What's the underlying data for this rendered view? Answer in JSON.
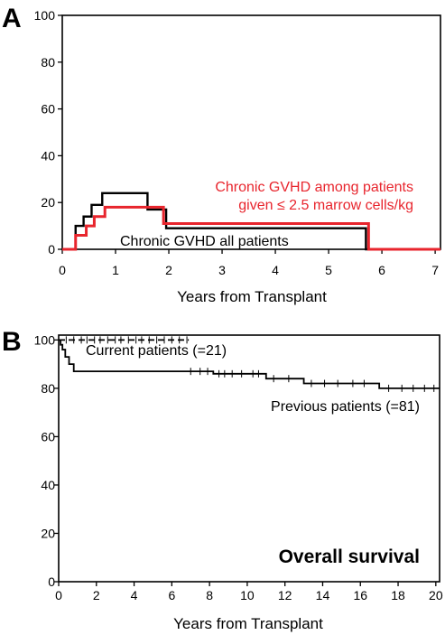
{
  "chart_data": [
    {
      "panel": "A",
      "type": "line",
      "xlabel": "Years from Transplant",
      "ylabel": "",
      "xlim": [
        0,
        7.1
      ],
      "ylim": [
        0,
        100
      ],
      "xticks": [
        0,
        1,
        2,
        3,
        4,
        5,
        6,
        7
      ],
      "yticks": [
        0,
        20,
        40,
        60,
        80,
        100
      ],
      "series": [
        {
          "name": "Chronic GVHD all patients",
          "label_lines": [
            "Chronic GVHD all patients"
          ],
          "color": "#000000",
          "dashed": false,
          "x": [
            0,
            0.25,
            0.25,
            0.4,
            0.4,
            0.55,
            0.55,
            0.75,
            0.75,
            1.6,
            1.6,
            1.95,
            1.95,
            5.7,
            5.7,
            7.1
          ],
          "y": [
            0,
            0,
            10,
            10,
            14,
            14,
            19,
            19,
            24,
            24,
            17,
            17,
            9,
            9,
            0,
            0
          ]
        },
        {
          "name": "Chronic GVHD among patients given ≤ 2.5 marrow cells/kg",
          "label_lines": [
            "Chronic GVHD among patients",
            "given ≤ 2.5 marrow cells/kg"
          ],
          "color": "#e8252d",
          "dashed": false,
          "x": [
            0,
            0.25,
            0.25,
            0.45,
            0.45,
            0.6,
            0.6,
            0.8,
            0.8,
            1.9,
            1.9,
            5.75,
            5.75,
            7.1
          ],
          "y": [
            0,
            0,
            6,
            6,
            10,
            10,
            14,
            14,
            18,
            18,
            11,
            11,
            0,
            0
          ]
        }
      ]
    },
    {
      "panel": "B",
      "type": "line",
      "title": "Overall survival",
      "xlabel": "Years from Transplant",
      "ylabel": "",
      "xlim": [
        0,
        20.2
      ],
      "ylim": [
        0,
        102
      ],
      "xticks": [
        0,
        2,
        4,
        6,
        8,
        10,
        12,
        14,
        16,
        18,
        20
      ],
      "yticks": [
        0,
        20,
        40,
        60,
        80,
        100
      ],
      "series": [
        {
          "name": "Current patients (=21)",
          "label_lines": [
            "Current patients (=21)"
          ],
          "color": "#000000",
          "dashed": true,
          "x": [
            0,
            6.9
          ],
          "y": [
            100,
            100
          ],
          "censor_x": [
            0.4,
            0.8,
            1.2,
            1.5,
            1.9,
            2.2,
            2.6,
            3.0,
            3.3,
            3.7,
            4.1,
            4.4,
            4.8,
            5.2,
            5.6,
            6.0,
            6.4,
            6.8
          ]
        },
        {
          "name": "Previous patients (=81)",
          "label_lines": [
            "Previous patients (=81)"
          ],
          "color": "#000000",
          "dashed": false,
          "x": [
            0,
            0.1,
            0.1,
            0.2,
            0.2,
            0.35,
            0.35,
            0.55,
            0.55,
            0.8,
            0.8,
            8.2,
            8.2,
            11.0,
            11.0,
            13.0,
            13.0,
            17.0,
            17.0,
            20.2
          ],
          "y": [
            100,
            100,
            98,
            98,
            96,
            96,
            93,
            93,
            90,
            90,
            87,
            87,
            86,
            86,
            84,
            84,
            82,
            82,
            80,
            80
          ],
          "censor_x": [
            7.0,
            7.5,
            7.9,
            8.5,
            8.8,
            9.2,
            9.7,
            10.3,
            10.6,
            11.4,
            12.2,
            13.4,
            14.1,
            14.8,
            15.6,
            16.2,
            17.5,
            18.2,
            18.8,
            19.4,
            19.9
          ]
        }
      ]
    }
  ]
}
